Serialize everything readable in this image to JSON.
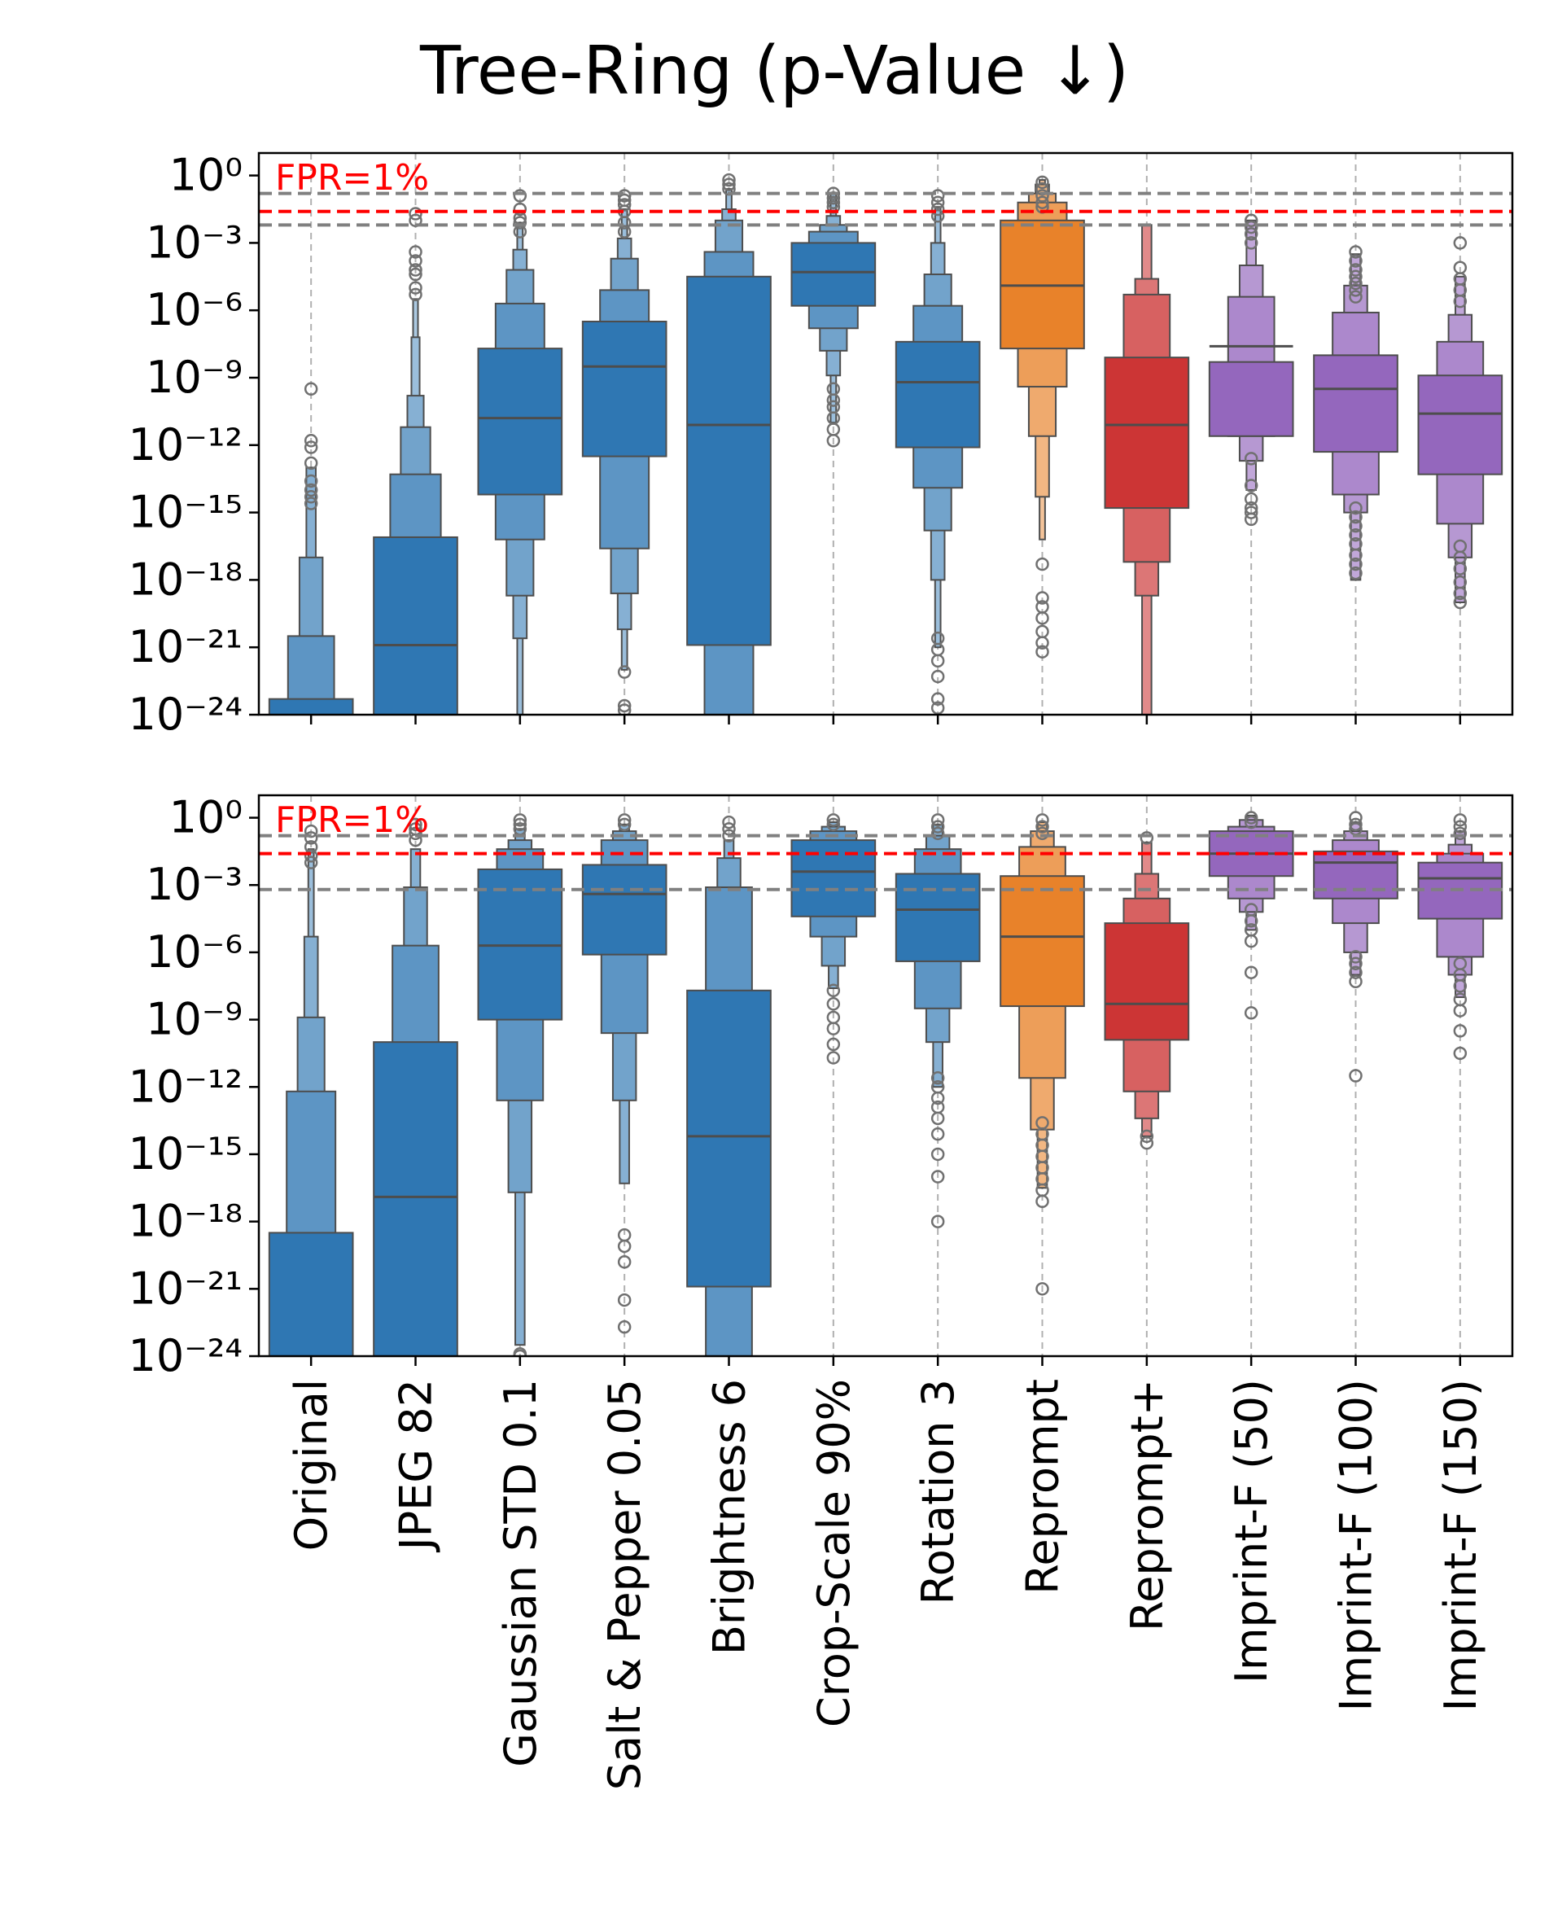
{
  "title": "Tree-Ring (p-Value ↓)",
  "colors": {
    "blue": "#2f77b3",
    "orange": "#e8822a",
    "red": "#cc3535",
    "purple": "#9467bd",
    "fpr_line": "#ff0000",
    "ref_line": "#808080",
    "edge": "#4d4d4d"
  },
  "chart_data": [
    {
      "type": "boxen",
      "panel": "top",
      "yscale": "log10",
      "ylim_exponent": [
        -24,
        1.0
      ],
      "yticks": [
        {
          "exp": 0,
          "label": "10⁰"
        },
        {
          "exp": -3,
          "label": "10⁻³"
        },
        {
          "exp": -6,
          "label": "10⁻⁶"
        },
        {
          "exp": -9,
          "label": "10⁻⁹"
        },
        {
          "exp": -12,
          "label": "10⁻¹²"
        },
        {
          "exp": -15,
          "label": "10⁻¹⁵"
        },
        {
          "exp": -18,
          "label": "10⁻¹⁸"
        },
        {
          "exp": -21,
          "label": "10⁻²¹"
        },
        {
          "exp": -24,
          "label": "10⁻²⁴"
        }
      ],
      "fpr_annotation": "FPR=1%",
      "fpr_line_exp": -1.6,
      "ref_lines_exp": [
        -0.8,
        -2.2
      ],
      "series": [
        {
          "category": "Original",
          "color": "blue",
          "median": -27,
          "levels": [
            [
              -29,
              -23.3
            ],
            [
              -29,
              -20.5
            ],
            [
              -29,
              -17
            ],
            [
              -29,
              -13
            ]
          ],
          "outliers": [
            -9.5,
            -11.8,
            -12.1,
            -12.8,
            -13.6,
            -14.0,
            -14.3,
            -14.6
          ]
        },
        {
          "category": "JPEG 82",
          "color": "blue",
          "median": -20.9,
          "levels": [
            [
              -30,
              -16.1
            ],
            [
              -30,
              -13.3
            ],
            [
              -30,
              -11.2
            ],
            [
              -30,
              -9.8
            ],
            [
              -30,
              -7.2
            ],
            [
              -30,
              -5.5
            ]
          ],
          "outliers": [
            -1.7,
            -2.0,
            -3.4,
            -3.8,
            -4.2,
            -4.4,
            -5.0,
            -5.3
          ]
        },
        {
          "category": "Gaussian STD 0.1",
          "color": "blue",
          "median": -10.8,
          "levels": [
            [
              -14.2,
              -7.7
            ],
            [
              -16.2,
              -5.7
            ],
            [
              -18.7,
              -4.2
            ],
            [
              -20.6,
              -3.3
            ],
            [
              -24,
              -2.1
            ]
          ],
          "outliers": [
            -0.9,
            -1.5,
            -1.9,
            -2.1,
            -2.5
          ]
        },
        {
          "category": "Salt & Pepper 0.05",
          "color": "blue",
          "median": -8.5,
          "levels": [
            [
              -12.5,
              -6.5
            ],
            [
              -16.6,
              -5.1
            ],
            [
              -18.6,
              -3.7
            ],
            [
              -20.2,
              -2.8
            ],
            [
              -22,
              -1.5
            ]
          ],
          "outliers": [
            -0.9,
            -1.1,
            -1.3,
            -1.6,
            -2.1,
            -2.5,
            -22.1,
            -23.6,
            -23.8
          ]
        },
        {
          "category": "Brightness 6",
          "color": "blue",
          "median": -11.1,
          "levels": [
            [
              -20.9,
              -4.5
            ],
            [
              -24,
              -3.4
            ],
            [
              -24,
              -2.0
            ],
            [
              -24,
              -1.5
            ],
            [
              -24,
              -0.6
            ]
          ],
          "outliers": [
            -0.2,
            -0.4,
            -0.6
          ]
        },
        {
          "category": "Crop-Scale 90%",
          "color": "blue",
          "median": -4.3,
          "levels": [
            [
              -5.8,
              -3.0
            ],
            [
              -6.8,
              -2.5
            ],
            [
              -7.8,
              -2.2
            ],
            [
              -8.9,
              -1.8
            ],
            [
              -11,
              -0.8
            ]
          ],
          "outliers": [
            -0.8,
            -1.0,
            -1.2,
            -1.4,
            -10.0,
            -10.3,
            -10.8,
            -11.3,
            -11.8,
            -9.5
          ]
        },
        {
          "category": "Rotation 3",
          "color": "blue",
          "median": -9.2,
          "levels": [
            [
              -12.1,
              -7.4
            ],
            [
              -13.9,
              -5.8
            ],
            [
              -15.8,
              -4.4
            ],
            [
              -18,
              -3.0
            ],
            [
              -21,
              -1.4
            ]
          ],
          "outliers": [
            -0.9,
            -1.2,
            -1.5,
            -1.8,
            -20.6,
            -21.1,
            -21.6,
            -22.3,
            -23.3,
            -23.7
          ]
        },
        {
          "category": "Reprompt",
          "color": "orange",
          "median": -4.9,
          "levels": [
            [
              -7.7,
              -2.0
            ],
            [
              -9.4,
              -1.2
            ],
            [
              -11.6,
              -0.8
            ],
            [
              -14.3,
              -0.4
            ],
            [
              -16.2,
              -0.2
            ]
          ],
          "outliers": [
            -0.3,
            -0.6,
            -0.9,
            -1.2,
            -1.4,
            -17.3,
            -18.8,
            -19.2,
            -19.7,
            -20.3,
            -20.8,
            -21.2
          ]
        },
        {
          "category": "Reprompt+",
          "color": "red",
          "median": -11.1,
          "levels": [
            [
              -14.8,
              -8.1
            ],
            [
              -17.2,
              -5.3
            ],
            [
              -18.7,
              -4.6
            ],
            [
              -24,
              -2.2
            ]
          ],
          "outliers": []
        },
        {
          "category": "Imprint-F (50)",
          "color": "purple",
          "median": -7.6,
          "levels": [
            [
              -11.6,
              -8.3
            ],
            [
              -11.6,
              -5.4
            ],
            [
              -12.7,
              -4.0
            ],
            [
              -14,
              -2.0
            ]
          ],
          "outliers": [
            -2.0,
            -2.3,
            -2.6,
            -3.0,
            -12.6,
            -13.8,
            -14.4,
            -14.8,
            -15.0,
            -15.3
          ]
        },
        {
          "category": "Imprint-F (100)",
          "color": "purple",
          "median": -9.5,
          "levels": [
            [
              -12.3,
              -8.0
            ],
            [
              -14.2,
              -6.1
            ],
            [
              -15,
              -4.9
            ],
            [
              -18,
              -3.5
            ]
          ],
          "outliers": [
            -3.4,
            -3.8,
            -4.2,
            -4.5,
            -4.8,
            -5.1,
            -5.4,
            -14.8,
            -15.2,
            -15.6,
            -16.0,
            -16.4,
            -16.9,
            -17.3,
            -17.7
          ]
        },
        {
          "category": "Imprint-F (150)",
          "color": "purple",
          "median": -10.6,
          "levels": [
            [
              -13.3,
              -8.9
            ],
            [
              -15.5,
              -7.4
            ],
            [
              -17,
              -6.2
            ],
            [
              -19,
              -4.5
            ]
          ],
          "outliers": [
            -3.0,
            -4.1,
            -4.6,
            -5.1,
            -5.6,
            -16.5,
            -17.0,
            -17.5,
            -18.1,
            -18.6,
            -19.0
          ]
        }
      ]
    },
    {
      "type": "boxen",
      "panel": "bottom",
      "yscale": "log10",
      "ylim_exponent": [
        -24,
        1.0
      ],
      "yticks": [
        {
          "exp": 0,
          "label": "10⁰"
        },
        {
          "exp": -3,
          "label": "10⁻³"
        },
        {
          "exp": -6,
          "label": "10⁻⁶"
        },
        {
          "exp": -9,
          "label": "10⁻⁹"
        },
        {
          "exp": -12,
          "label": "10⁻¹²"
        },
        {
          "exp": -15,
          "label": "10⁻¹⁵"
        },
        {
          "exp": -18,
          "label": "10⁻¹⁸"
        },
        {
          "exp": -21,
          "label": "10⁻²¹"
        },
        {
          "exp": -24,
          "label": "10⁻²⁴"
        }
      ],
      "fpr_annotation": "FPR=1%",
      "fpr_line_exp": -1.6,
      "ref_lines_exp": [
        -0.8,
        -3.2
      ],
      "series": [
        {
          "category": "Original",
          "color": "blue",
          "median": -26,
          "levels": [
            [
              -30,
              -18.5
            ],
            [
              -30,
              -12.2
            ],
            [
              -30,
              -8.9
            ],
            [
              -30,
              -5.3
            ],
            [
              -30,
              -1.4
            ]
          ],
          "outliers": [
            -0.6,
            -0.9,
            -1.3,
            -1.7,
            -2.0
          ]
        },
        {
          "category": "JPEG 82",
          "color": "blue",
          "median": -16.9,
          "levels": [
            [
              -30,
              -10.0
            ],
            [
              -30,
              -5.7
            ],
            [
              -30,
              -3.1
            ],
            [
              -30,
              -1.4
            ]
          ],
          "outliers": [
            -0.3,
            -0.5,
            -0.7,
            -1.0
          ]
        },
        {
          "category": "Gaussian STD 0.1",
          "color": "blue",
          "median": -5.7,
          "levels": [
            [
              -9.0,
              -2.3
            ],
            [
              -12.6,
              -1.4
            ],
            [
              -16.7,
              -1.0
            ],
            [
              -23.5,
              -0.5
            ]
          ],
          "outliers": [
            -0.1,
            -0.3,
            -0.5,
            -23.9,
            -24.0
          ]
        },
        {
          "category": "Salt & Pepper 0.05",
          "color": "blue",
          "median": -3.4,
          "levels": [
            [
              -6.1,
              -2.1
            ],
            [
              -9.6,
              -1.0
            ],
            [
              -12.6,
              -0.6
            ],
            [
              -16.3,
              -0.3
            ]
          ],
          "outliers": [
            -0.1,
            -0.3,
            -18.6,
            -19.1,
            -19.8,
            -21.5,
            -22.7
          ]
        },
        {
          "category": "Brightness 6",
          "color": "blue",
          "median": -14.2,
          "levels": [
            [
              -20.9,
              -7.7
            ],
            [
              -24,
              -3.1
            ],
            [
              -24,
              -1.8
            ],
            [
              -24,
              -1.0
            ]
          ],
          "outliers": [
            -0.2,
            -0.5,
            -0.8
          ]
        },
        {
          "category": "Crop-Scale 90%",
          "color": "blue",
          "median": -2.4,
          "levels": [
            [
              -4.4,
              -1.0
            ],
            [
              -5.3,
              -0.6
            ],
            [
              -6.6,
              -0.4
            ],
            [
              -7.6,
              -0.2
            ]
          ],
          "outliers": [
            -0.1,
            -0.3,
            -7.7,
            -8.3,
            -8.9,
            -9.4,
            -10.1,
            -10.7
          ]
        },
        {
          "category": "Rotation 3",
          "color": "blue",
          "median": -4.1,
          "levels": [
            [
              -6.4,
              -2.5
            ],
            [
              -8.5,
              -1.4
            ],
            [
              -10.0,
              -0.8
            ],
            [
              -12,
              -0.3
            ]
          ],
          "outliers": [
            -0.1,
            -0.4,
            -0.7,
            -11.6,
            -12.0,
            -12.5,
            -12.9,
            -13.4,
            -14.1,
            -15.0,
            -16.0,
            -18.0
          ]
        },
        {
          "category": "Reprompt",
          "color": "orange",
          "median": -5.3,
          "levels": [
            [
              -8.4,
              -2.6
            ],
            [
              -11.6,
              -1.3
            ],
            [
              -13.9,
              -0.6
            ],
            [
              -16.5,
              -0.2
            ]
          ],
          "outliers": [
            -0.1,
            -0.4,
            -0.7,
            -13.6,
            -14.1,
            -14.6,
            -15.1,
            -15.6,
            -16.1,
            -16.6,
            -17.1,
            -21.0
          ]
        },
        {
          "category": "Reprompt+",
          "color": "red",
          "median": -8.3,
          "levels": [
            [
              -9.9,
              -4.7
            ],
            [
              -12.2,
              -3.6
            ],
            [
              -13.4,
              -2.5
            ],
            [
              -14.2,
              -1.1
            ]
          ],
          "outliers": [
            -0.9,
            -14.2,
            -14.5
          ]
        },
        {
          "category": "Imprint-F (50)",
          "color": "purple",
          "median": -1.6,
          "levels": [
            [
              -2.6,
              -0.6
            ],
            [
              -3.6,
              -0.4
            ],
            [
              -4.2,
              -0.1
            ],
            [
              -5.0,
              0.1
            ]
          ],
          "outliers": [
            0.0,
            -0.2,
            -4.1,
            -4.6,
            -5.0,
            -5.5,
            -6.9,
            -8.7
          ]
        },
        {
          "category": "Imprint-F (100)",
          "color": "purple",
          "median": -2.0,
          "levels": [
            [
              -3.6,
              -1.5
            ],
            [
              -4.7,
              -1.0
            ],
            [
              -6.0,
              -0.6
            ],
            [
              -7,
              -0.2
            ]
          ],
          "outliers": [
            0.0,
            -0.3,
            -0.5,
            -6.2,
            -6.5,
            -6.9,
            -7.3,
            -11.5
          ]
        },
        {
          "category": "Imprint-F (150)",
          "color": "purple",
          "median": -2.7,
          "levels": [
            [
              -4.5,
              -2.0
            ],
            [
              -6.2,
              -1.6
            ],
            [
              -7.0,
              -1.2
            ],
            [
              -8.0,
              -0.6
            ]
          ],
          "outliers": [
            -0.1,
            -0.4,
            -0.7,
            -6.5,
            -7.0,
            -7.5,
            -8.1,
            -8.6,
            -9.5,
            -10.5
          ]
        }
      ]
    }
  ],
  "categories": [
    "Original",
    "JPEG 82",
    "Gaussian STD 0.1",
    "Salt & Pepper 0.05",
    "Brightness 6",
    "Crop-Scale 90%",
    "Rotation 3",
    "Reprompt",
    "Reprompt+",
    "Imprint-F (50)",
    "Imprint-F (100)",
    "Imprint-F (150)"
  ]
}
